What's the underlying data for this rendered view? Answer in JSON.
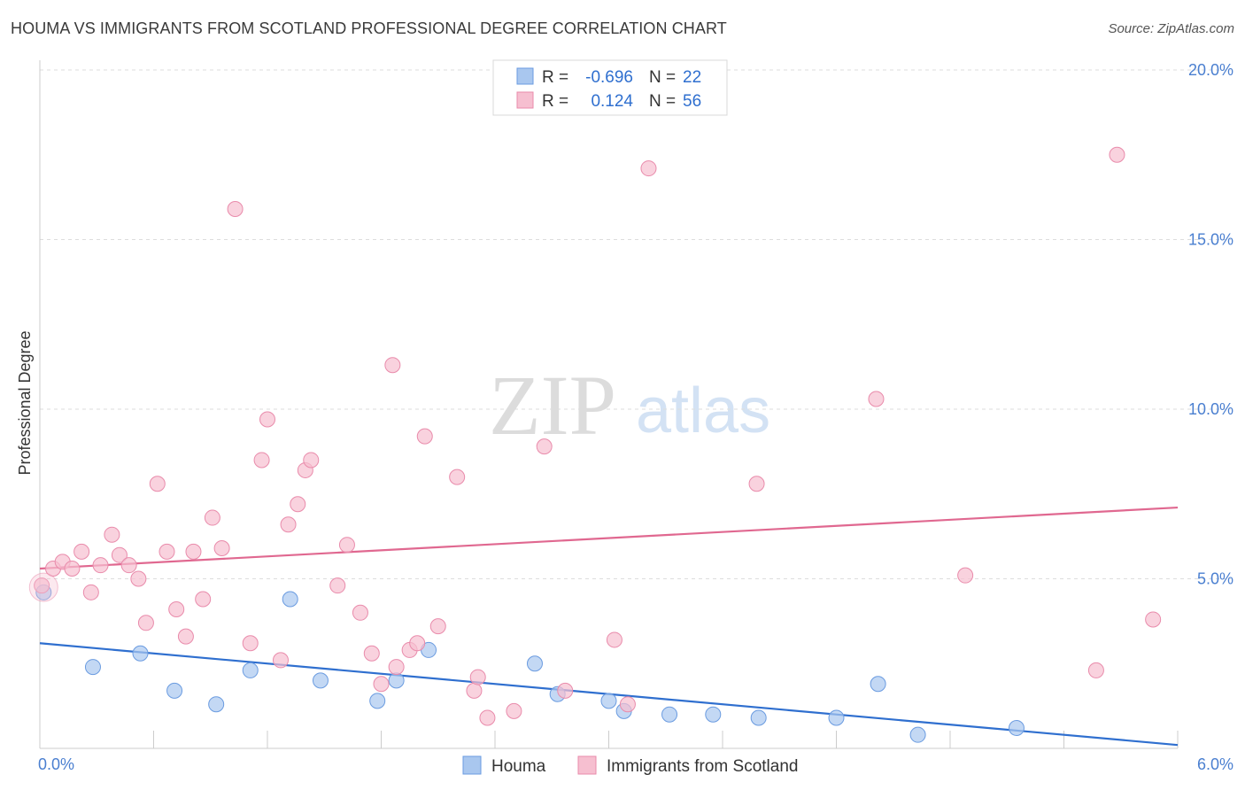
{
  "title": "HOUMA VS IMMIGRANTS FROM SCOTLAND PROFESSIONAL DEGREE CORRELATION CHART",
  "source": "Source: ZipAtlas.com",
  "watermark": {
    "zip": "ZIP",
    "atlas": "atlas"
  },
  "legend_stats": [
    {
      "r_label": "R =",
      "r_value": "-0.696",
      "n_label": "N =",
      "n_value": "22",
      "color": "#a9c7ef",
      "stroke": "#6a9be0"
    },
    {
      "r_label": "R =",
      "r_value": "0.124",
      "n_label": "N =",
      "n_value": "56",
      "color": "#f6bfd0",
      "stroke": "#e98bab"
    }
  ],
  "chart_data": {
    "type": "scatter",
    "title": "HOUMA VS IMMIGRANTS FROM SCOTLAND PROFESSIONAL DEGREE CORRELATION CHART",
    "xlabel": "",
    "ylabel": "Professional Degree",
    "xlim": [
      0,
      6
    ],
    "ylim": [
      0,
      20
    ],
    "x_tick_labels": [
      "0.0%",
      "6.0%"
    ],
    "y_ticks": [
      5,
      10,
      15,
      20
    ],
    "y_tick_labels": [
      "5.0%",
      "10.0%",
      "15.0%",
      "20.0%"
    ],
    "grid": true,
    "legend_position": "bottom",
    "series": [
      {
        "name": "Houma",
        "color": "#a9c7ef",
        "stroke": "#6a9be0",
        "line_color": "#2f6fcf",
        "trend": [
          [
            0,
            3.1
          ],
          [
            6,
            0.1
          ]
        ],
        "points": [
          [
            0.02,
            4.6
          ],
          [
            0.28,
            2.4
          ],
          [
            0.53,
            2.8
          ],
          [
            0.71,
            1.7
          ],
          [
            0.93,
            1.3
          ],
          [
            1.11,
            2.3
          ],
          [
            1.32,
            4.4
          ],
          [
            1.48,
            2.0
          ],
          [
            1.78,
            1.4
          ],
          [
            1.88,
            2.0
          ],
          [
            2.05,
            2.9
          ],
          [
            2.61,
            2.5
          ],
          [
            2.73,
            1.6
          ],
          [
            3.0,
            1.4
          ],
          [
            3.08,
            1.1
          ],
          [
            3.32,
            1.0
          ],
          [
            3.55,
            1.0
          ],
          [
            3.79,
            0.9
          ],
          [
            4.2,
            0.9
          ],
          [
            4.42,
            1.9
          ],
          [
            4.63,
            0.4
          ],
          [
            5.15,
            0.6
          ]
        ]
      },
      {
        "name": "Immigrants from Scotland",
        "color": "#f6bfd0",
        "stroke": "#e98bab",
        "line_color": "#e06890",
        "trend": [
          [
            0,
            5.3
          ],
          [
            6,
            7.1
          ]
        ],
        "points": [
          [
            0.01,
            4.8
          ],
          [
            0.07,
            5.3
          ],
          [
            0.12,
            5.5
          ],
          [
            0.17,
            5.3
          ],
          [
            0.22,
            5.8
          ],
          [
            0.27,
            4.6
          ],
          [
            0.32,
            5.4
          ],
          [
            0.38,
            6.3
          ],
          [
            0.42,
            5.7
          ],
          [
            0.47,
            5.4
          ],
          [
            0.52,
            5.0
          ],
          [
            0.56,
            3.7
          ],
          [
            0.62,
            7.8
          ],
          [
            0.67,
            5.8
          ],
          [
            0.72,
            4.1
          ],
          [
            0.77,
            3.3
          ],
          [
            0.81,
            5.8
          ],
          [
            0.86,
            4.4
          ],
          [
            0.91,
            6.8
          ],
          [
            0.96,
            5.9
          ],
          [
            1.03,
            15.9
          ],
          [
            1.11,
            3.1
          ],
          [
            1.17,
            8.5
          ],
          [
            1.2,
            9.7
          ],
          [
            1.27,
            2.6
          ],
          [
            1.31,
            6.6
          ],
          [
            1.36,
            7.2
          ],
          [
            1.4,
            8.2
          ],
          [
            1.43,
            8.5
          ],
          [
            1.57,
            4.8
          ],
          [
            1.62,
            6.0
          ],
          [
            1.69,
            4.0
          ],
          [
            1.75,
            2.8
          ],
          [
            1.8,
            1.9
          ],
          [
            1.86,
            11.3
          ],
          [
            1.88,
            2.4
          ],
          [
            1.95,
            2.9
          ],
          [
            1.99,
            3.1
          ],
          [
            2.03,
            9.2
          ],
          [
            2.1,
            3.6
          ],
          [
            2.2,
            8.0
          ],
          [
            2.29,
            1.7
          ],
          [
            2.31,
            2.1
          ],
          [
            2.36,
            0.9
          ],
          [
            2.5,
            1.1
          ],
          [
            2.66,
            8.9
          ],
          [
            2.77,
            1.7
          ],
          [
            3.03,
            3.2
          ],
          [
            3.1,
            1.3
          ],
          [
            3.21,
            17.1
          ],
          [
            3.78,
            7.8
          ],
          [
            4.41,
            10.3
          ],
          [
            4.88,
            5.1
          ],
          [
            5.57,
            2.3
          ],
          [
            5.68,
            17.5
          ],
          [
            5.87,
            3.8
          ]
        ]
      }
    ]
  }
}
